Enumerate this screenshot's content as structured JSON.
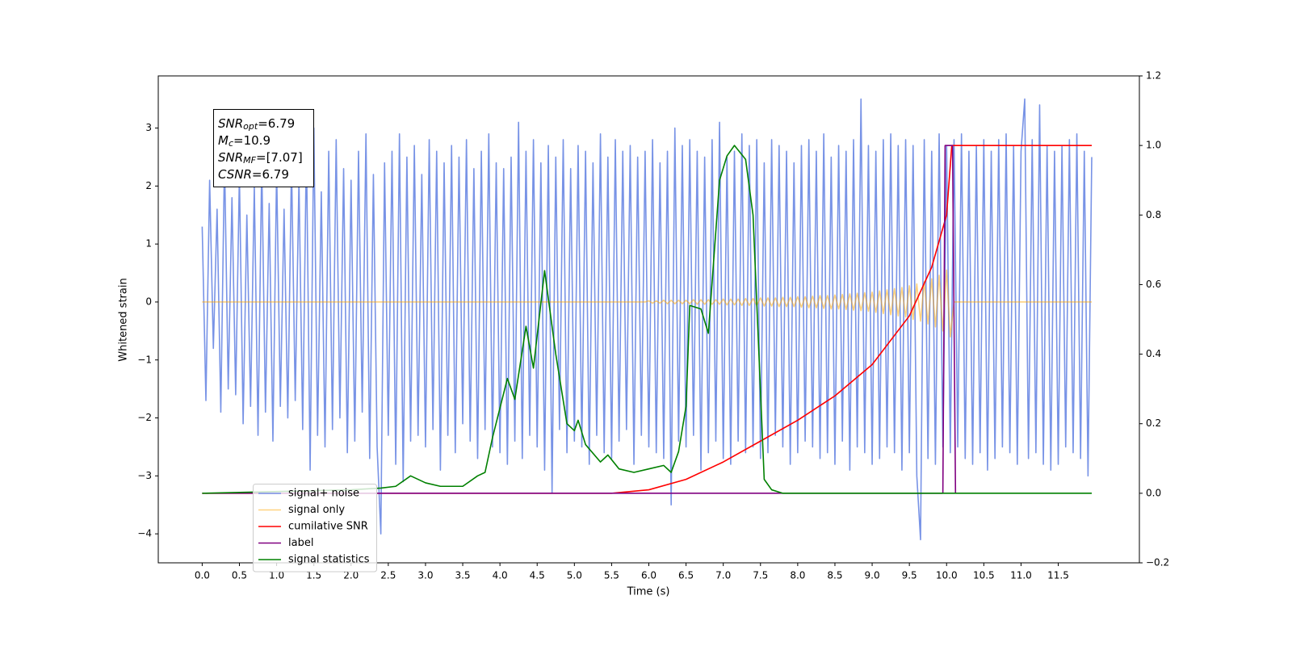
{
  "chart_data": {
    "type": "line",
    "xlabel": "Time (s)",
    "ylabel": "Whitened strain",
    "annotations": [
      {
        "base": "SNR",
        "sub": "opt",
        "text": "=6.79"
      },
      {
        "base": "M",
        "sub": "c",
        "text": "=10.9"
      },
      {
        "base": "SNR",
        "sub": "MF",
        "text": "=[7.07]"
      },
      {
        "base": "CSNR",
        "sub": null,
        "text": "=6.79"
      }
    ],
    "xlim": [
      -0.59,
      12.59
    ],
    "ylim": [
      -4.5,
      3.9
    ],
    "y2lim": [
      -0.2,
      1.2
    ],
    "xticks": [
      {
        "value": 0,
        "label": "0.0"
      },
      0.5,
      {
        "value": 1,
        "label": "1.0"
      },
      1.5,
      {
        "value": 2,
        "label": "2.0"
      },
      2.5,
      {
        "value": 3,
        "label": "3.0"
      },
      3.5,
      {
        "value": 4,
        "label": "4.0"
      },
      4.5,
      {
        "value": 5,
        "label": "5.0"
      },
      5.5,
      {
        "value": 6,
        "label": "6.0"
      },
      6.5,
      {
        "value": 7,
        "label": "7.0"
      },
      7.5,
      {
        "value": 8,
        "label": "8.0"
      },
      8.5,
      {
        "value": 9,
        "label": "9.0"
      },
      9.5,
      {
        "value": 10,
        "label": "10.0"
      },
      10.5,
      {
        "value": 11,
        "label": "11.0"
      },
      11.5
    ],
    "yticks": [
      {
        "value": -4,
        "label": "−4"
      },
      {
        "value": -3,
        "label": "−3"
      },
      {
        "value": -2,
        "label": "−2"
      },
      {
        "value": -1,
        "label": "−1"
      },
      0,
      1,
      2,
      3
    ],
    "y2ticks": [
      {
        "value": -0.2,
        "label": "−0.2"
      },
      {
        "value": 0,
        "label": "0.0"
      },
      0.2,
      0.4,
      0.6,
      0.8,
      {
        "value": 1,
        "label": "1.0"
      },
      1.2
    ],
    "legend": "lower left",
    "x": [
      0,
      0.05,
      0.1,
      0.15,
      0.2,
      0.25,
      0.3,
      0.35,
      0.4,
      0.45,
      0.5,
      0.55,
      0.6,
      0.65,
      0.7,
      0.75,
      0.8,
      0.85,
      0.9,
      0.95,
      1,
      1.05,
      1.1,
      1.15,
      1.2,
      1.25,
      1.3,
      1.35,
      1.4,
      1.45,
      1.5,
      1.55,
      1.6,
      1.65,
      1.7,
      1.75,
      1.8,
      1.85,
      1.9,
      1.95,
      2,
      2.05,
      2.1,
      2.15,
      2.2,
      2.25,
      2.3,
      2.35,
      2.4,
      2.45,
      2.5,
      2.55,
      2.6,
      2.65,
      2.7,
      2.75,
      2.8,
      2.85,
      2.9,
      2.95,
      3,
      3.05,
      3.1,
      3.15,
      3.2,
      3.25,
      3.3,
      3.35,
      3.4,
      3.45,
      3.5,
      3.55,
      3.6,
      3.65,
      3.7,
      3.75,
      3.8,
      3.85,
      3.9,
      3.95,
      4,
      4.05,
      4.1,
      4.15,
      4.2,
      4.25,
      4.3,
      4.35,
      4.4,
      4.45,
      4.5,
      4.55,
      4.6,
      4.65,
      4.7,
      4.75,
      4.8,
      4.85,
      4.9,
      4.95,
      5,
      5.05,
      5.1,
      5.15,
      5.2,
      5.25,
      5.3,
      5.35,
      5.4,
      5.45,
      5.5,
      5.55,
      5.6,
      5.65,
      5.7,
      5.75,
      5.8,
      5.85,
      5.9,
      5.95,
      6,
      6.05,
      6.1,
      6.15,
      6.2,
      6.25,
      6.3,
      6.35,
      6.4,
      6.45,
      6.5,
      6.55,
      6.6,
      6.65,
      6.7,
      6.75,
      6.8,
      6.85,
      6.9,
      6.95,
      7,
      7.05,
      7.1,
      7.15,
      7.2,
      7.25,
      7.3,
      7.35,
      7.4,
      7.45,
      7.5,
      7.55,
      7.6,
      7.65,
      7.7,
      7.75,
      7.8,
      7.85,
      7.9,
      7.95,
      8,
      8.05,
      8.1,
      8.15,
      8.2,
      8.25,
      8.3,
      8.35,
      8.4,
      8.45,
      8.5,
      8.55,
      8.6,
      8.65,
      8.7,
      8.75,
      8.8,
      8.85,
      8.9,
      8.95,
      9,
      9.05,
      9.1,
      9.15,
      9.2,
      9.25,
      9.3,
      9.35,
      9.4,
      9.45,
      9.5,
      9.55,
      9.6,
      9.65,
      9.7,
      9.75,
      9.8,
      9.85,
      9.9,
      9.95,
      10,
      10.05,
      10.1,
      10.15,
      10.2,
      10.25,
      10.3,
      10.35,
      10.4,
      10.45,
      10.5,
      10.55,
      10.6,
      10.65,
      10.7,
      10.75,
      10.8,
      10.85,
      10.9,
      10.95,
      11,
      11.05,
      11.1,
      11.15,
      11.2,
      11.25,
      11.3,
      11.35,
      11.4,
      11.45,
      11.5,
      11.55,
      11.6,
      11.65,
      11.7,
      11.75,
      11.8,
      11.85,
      11.9,
      11.95
    ],
    "series": [
      {
        "name": "signal+ noise",
        "color": "#7893e6",
        "values": [
          1.3,
          -1.7,
          2.1,
          -0.8,
          1.6,
          -1.9,
          2.5,
          -1.5,
          1.8,
          -1.6,
          2.2,
          -2.1,
          1.5,
          -1.8,
          2.0,
          -2.3,
          2.4,
          -1.9,
          1.7,
          -2.4,
          2.3,
          -1.8,
          1.6,
          -2.0,
          2.4,
          -1.7,
          2.1,
          -2.2,
          2.7,
          -2.9,
          3.0,
          -2.3,
          1.9,
          -2.5,
          2.6,
          -2.2,
          2.8,
          -2.0,
          2.3,
          -2.6,
          2.1,
          -2.4,
          2.6,
          -1.9,
          2.9,
          -2.7,
          2.2,
          -2.5,
          -4.0,
          2.4,
          -2.3,
          2.6,
          -2.8,
          2.9,
          -3.1,
          2.5,
          -2.4,
          2.7,
          -2.3,
          2.2,
          -2.5,
          2.8,
          -2.2,
          2.6,
          -2.9,
          2.4,
          -2.3,
          2.7,
          -2.6,
          2.5,
          -2.1,
          2.8,
          -2.4,
          2.3,
          -2.7,
          2.6,
          -2.2,
          2.9,
          -2.5,
          2.4,
          -2.6,
          2.3,
          -2.8,
          2.5,
          -2.4,
          3.1,
          -2.7,
          2.6,
          -2.3,
          2.8,
          -2.5,
          2.4,
          -2.9,
          2.7,
          -3.3,
          2.5,
          -2.2,
          2.8,
          -2.6,
          2.3,
          -2.4,
          2.7,
          -2.5,
          2.6,
          -2.8,
          2.4,
          -2.3,
          2.9,
          -2.6,
          2.5,
          -2.7,
          2.8,
          -2.4,
          2.6,
          -2.2,
          2.7,
          -2.8,
          2.5,
          -2.3,
          2.6,
          -2.5,
          2.8,
          -2.6,
          2.4,
          -2.7,
          2.6,
          -3.5,
          3.0,
          -2.4,
          2.7,
          -2.5,
          2.8,
          -2.3,
          2.6,
          -2.9,
          2.5,
          -2.6,
          2.8,
          -2.4,
          3.1,
          -2.7,
          2.5,
          -2.8,
          2.6,
          -2.4,
          2.9,
          -2.6,
          2.7,
          -2.5,
          2.8,
          -2.7,
          2.4,
          -2.6,
          2.8,
          -2.3,
          2.7,
          -2.5,
          2.6,
          -2.8,
          2.4,
          -2.6,
          2.7,
          -2.4,
          2.8,
          -2.5,
          2.6,
          -2.7,
          2.9,
          -2.6,
          2.5,
          -2.8,
          2.7,
          -2.4,
          2.6,
          -2.9,
          2.8,
          -2.5,
          3.5,
          -2.6,
          2.7,
          -2.8,
          2.6,
          -2.7,
          2.8,
          -2.5,
          2.9,
          -2.6,
          2.7,
          -2.9,
          2.8,
          -2.6,
          2.7,
          -3.0,
          -4.1,
          2.8,
          -2.7,
          2.6,
          -2.8,
          2.9,
          -2.5,
          2.7,
          -2.6,
          2.8,
          -2.5,
          2.9,
          -2.7,
          2.6,
          -2.8,
          2.7,
          -2.6,
          2.8,
          -2.9,
          2.6,
          -2.7,
          2.8,
          -2.5,
          2.9,
          -2.6,
          2.7,
          -2.8,
          2.6,
          3.5,
          -2.7,
          2.8,
          -2.6,
          3.4,
          -2.8,
          2.7,
          -2.9,
          2.6,
          -2.8,
          2.7,
          -2.5,
          2.8,
          -2.6,
          2.9,
          -2.7,
          2.6,
          -3.0,
          2.5
        ]
      },
      {
        "name": "signal only",
        "color": "#ffa500",
        "alpha": 0.5,
        "values": [
          0,
          0,
          0,
          0,
          0,
          0,
          0,
          0,
          0,
          0,
          0,
          0,
          0,
          0,
          0,
          0,
          0,
          0,
          0,
          0,
          0,
          0,
          0,
          0,
          0,
          0,
          0,
          0,
          0,
          0,
          0,
          0,
          0,
          0,
          0,
          0,
          0,
          0,
          0,
          0,
          0,
          0,
          0,
          0,
          0,
          0,
          0,
          0,
          0,
          0,
          0,
          0,
          0,
          0,
          0,
          0,
          0,
          0,
          0,
          0,
          0,
          0,
          0,
          0,
          0,
          0,
          0,
          0,
          0,
          0,
          0,
          0,
          0,
          0,
          0,
          0,
          0,
          0,
          0,
          0,
          0,
          0,
          0,
          0,
          0,
          0,
          0,
          0,
          0,
          0,
          0,
          0,
          0,
          0,
          0,
          0,
          0,
          0,
          0,
          0,
          0,
          0,
          0,
          0,
          0,
          0,
          0,
          0,
          0,
          0,
          0,
          0,
          0,
          0,
          0,
          0,
          0,
          0,
          0,
          0,
          0.02,
          -0.02,
          0.02,
          -0.02,
          0.03,
          -0.03,
          0.03,
          -0.03,
          0.03,
          -0.03,
          0.03,
          -0.03,
          0.04,
          -0.04,
          0.04,
          -0.04,
          0.04,
          -0.04,
          0.04,
          -0.04,
          0.05,
          -0.05,
          0.05,
          -0.05,
          0.05,
          -0.06,
          0.06,
          -0.06,
          0.06,
          -0.06,
          0.07,
          -0.07,
          0.07,
          -0.07,
          0.07,
          -0.08,
          0.08,
          -0.08,
          0.08,
          -0.08,
          0.09,
          -0.09,
          0.09,
          -0.1,
          0.1,
          -0.1,
          0.11,
          -0.11,
          0.11,
          -0.12,
          0.12,
          -0.12,
          0.13,
          -0.13,
          0.14,
          -0.14,
          0.15,
          -0.15,
          0.16,
          -0.16,
          0.17,
          -0.18,
          0.19,
          -0.2,
          0.21,
          -0.22,
          0.23,
          -0.24,
          0.25,
          -0.26,
          0.28,
          -0.3,
          0.31,
          -0.33,
          0.35,
          -0.38,
          0.4,
          -0.43,
          0.46,
          -0.5,
          0.55,
          -0.6,
          0,
          0,
          0,
          0,
          0,
          0,
          0,
          0,
          0,
          0,
          0,
          0,
          0,
          0,
          0,
          0,
          0,
          0,
          0,
          0,
          0,
          0,
          0,
          0,
          0,
          0,
          0,
          0,
          0,
          0,
          0,
          0,
          0,
          0,
          0,
          0,
          0,
          0
        ]
      },
      {
        "name": "cumilative SNR",
        "color": "#ff0000",
        "axis": "y2",
        "x": [
          0,
          5.5,
          6.0,
          6.5,
          7.0,
          7.5,
          8.0,
          8.5,
          9.0,
          9.5,
          9.8,
          10.0,
          10.07,
          11.95
        ],
        "values": [
          0,
          0,
          0.01,
          0.04,
          0.09,
          0.15,
          0.21,
          0.28,
          0.37,
          0.51,
          0.65,
          0.8,
          1.0,
          1.0
        ]
      },
      {
        "name": "label",
        "color": "#800080",
        "axis": "y2",
        "x": [
          0,
          9.95,
          9.98,
          10.08,
          10.12
        ],
        "values": [
          0,
          0,
          1,
          1,
          0
        ]
      },
      {
        "name": "signal statistics",
        "color": "#008000",
        "axis": "y2",
        "x": [
          0,
          2.0,
          2.4,
          2.6,
          2.8,
          3.0,
          3.2,
          3.5,
          3.7,
          3.8,
          3.9,
          4.1,
          4.2,
          4.35,
          4.45,
          4.6,
          4.75,
          4.9,
          5.0,
          5.05,
          5.15,
          5.35,
          5.45,
          5.6,
          5.8,
          6.0,
          6.2,
          6.3,
          6.4,
          6.5,
          6.55,
          6.7,
          6.8,
          6.95,
          7.05,
          7.15,
          7.3,
          7.4,
          7.55,
          7.65,
          7.8,
          11.95
        ],
        "values": [
          0,
          0.01,
          0.015,
          0.02,
          0.05,
          0.03,
          0.02,
          0.02,
          0.05,
          0.06,
          0.16,
          0.33,
          0.27,
          0.48,
          0.36,
          0.64,
          0.4,
          0.2,
          0.18,
          0.21,
          0.14,
          0.09,
          0.11,
          0.07,
          0.06,
          0.07,
          0.08,
          0.06,
          0.12,
          0.25,
          0.54,
          0.53,
          0.46,
          0.9,
          0.97,
          1.0,
          0.96,
          0.8,
          0.04,
          0.01,
          0,
          0
        ]
      }
    ]
  }
}
